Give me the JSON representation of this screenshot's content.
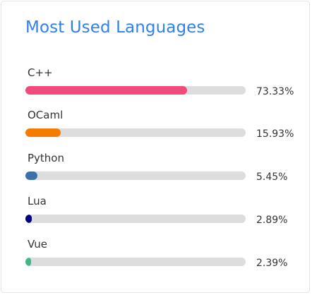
{
  "card": {
    "title": "Most Used Languages"
  },
  "languages": [
    {
      "name": "C++",
      "percent_text": "73.33%",
      "value": 73.33,
      "color": "#f04b7a"
    },
    {
      "name": "OCaml",
      "percent_text": "15.93%",
      "value": 15.93,
      "color": "#f57c00"
    },
    {
      "name": "Python",
      "percent_text": "5.45%",
      "value": 5.45,
      "color": "#3872a8"
    },
    {
      "name": "Lua",
      "percent_text": "2.89%",
      "value": 2.89,
      "color": "#000080"
    },
    {
      "name": "Vue",
      "percent_text": "2.39%",
      "value": 2.39,
      "color": "#41b883"
    }
  ]
}
